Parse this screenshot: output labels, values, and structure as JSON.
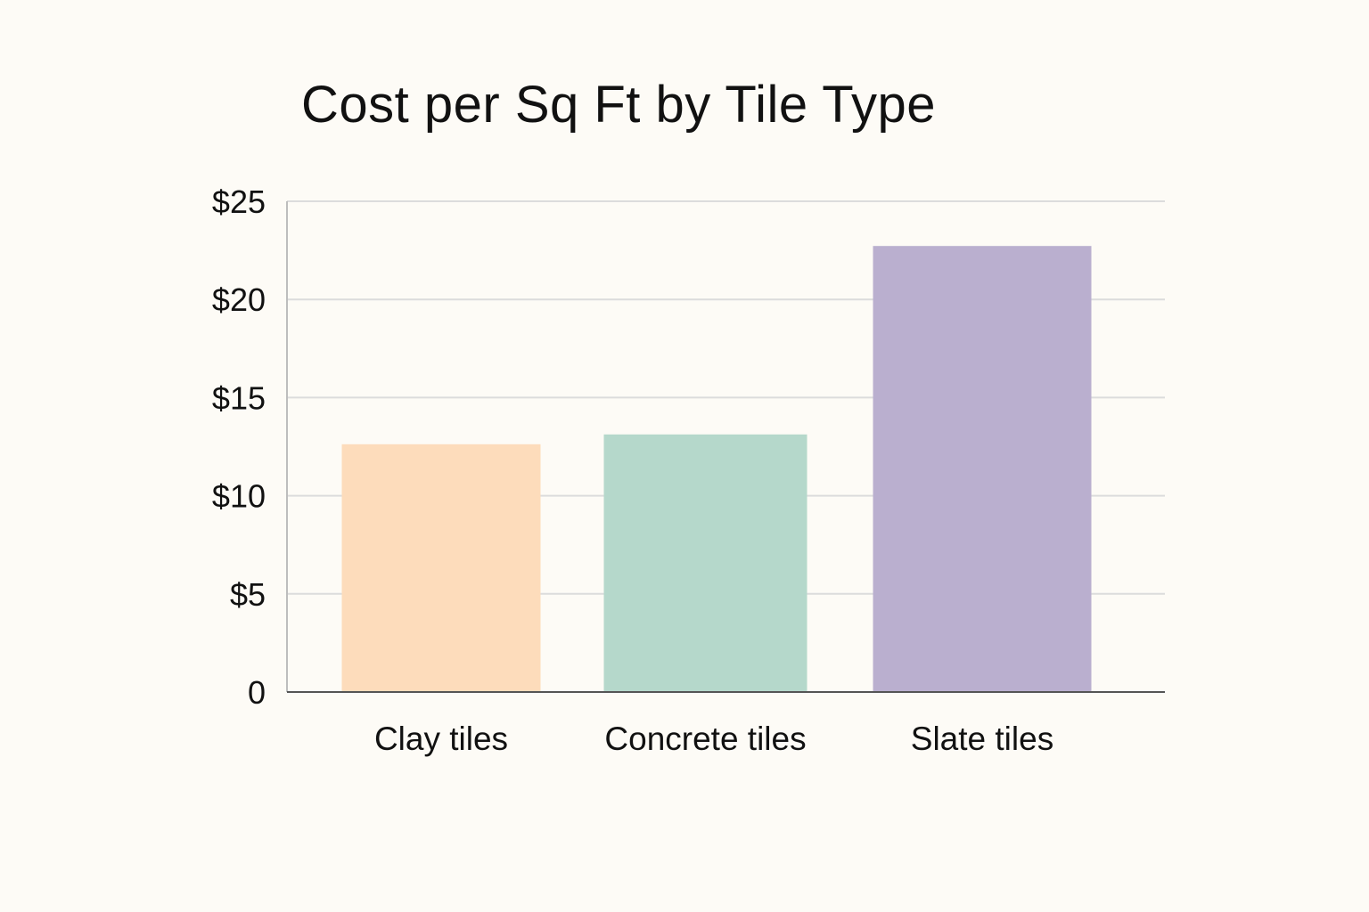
{
  "chart_data": {
    "type": "bar",
    "title": "Cost per Sq Ft by Tile Type",
    "categories": [
      "Clay tiles",
      "Concrete tiles",
      "Slate tiles"
    ],
    "values": [
      12.6,
      13.1,
      22.7
    ],
    "colors": [
      "#fddcbb",
      "#b5d8cb",
      "#baafcf"
    ],
    "yticks": [
      0,
      5,
      10,
      15,
      20,
      25
    ],
    "ytick_labels": [
      "0",
      "$5",
      "$10",
      "$15",
      "$20",
      "$25"
    ],
    "ylim": [
      0,
      25
    ],
    "xlabel": "",
    "ylabel": "",
    "grid": true
  }
}
